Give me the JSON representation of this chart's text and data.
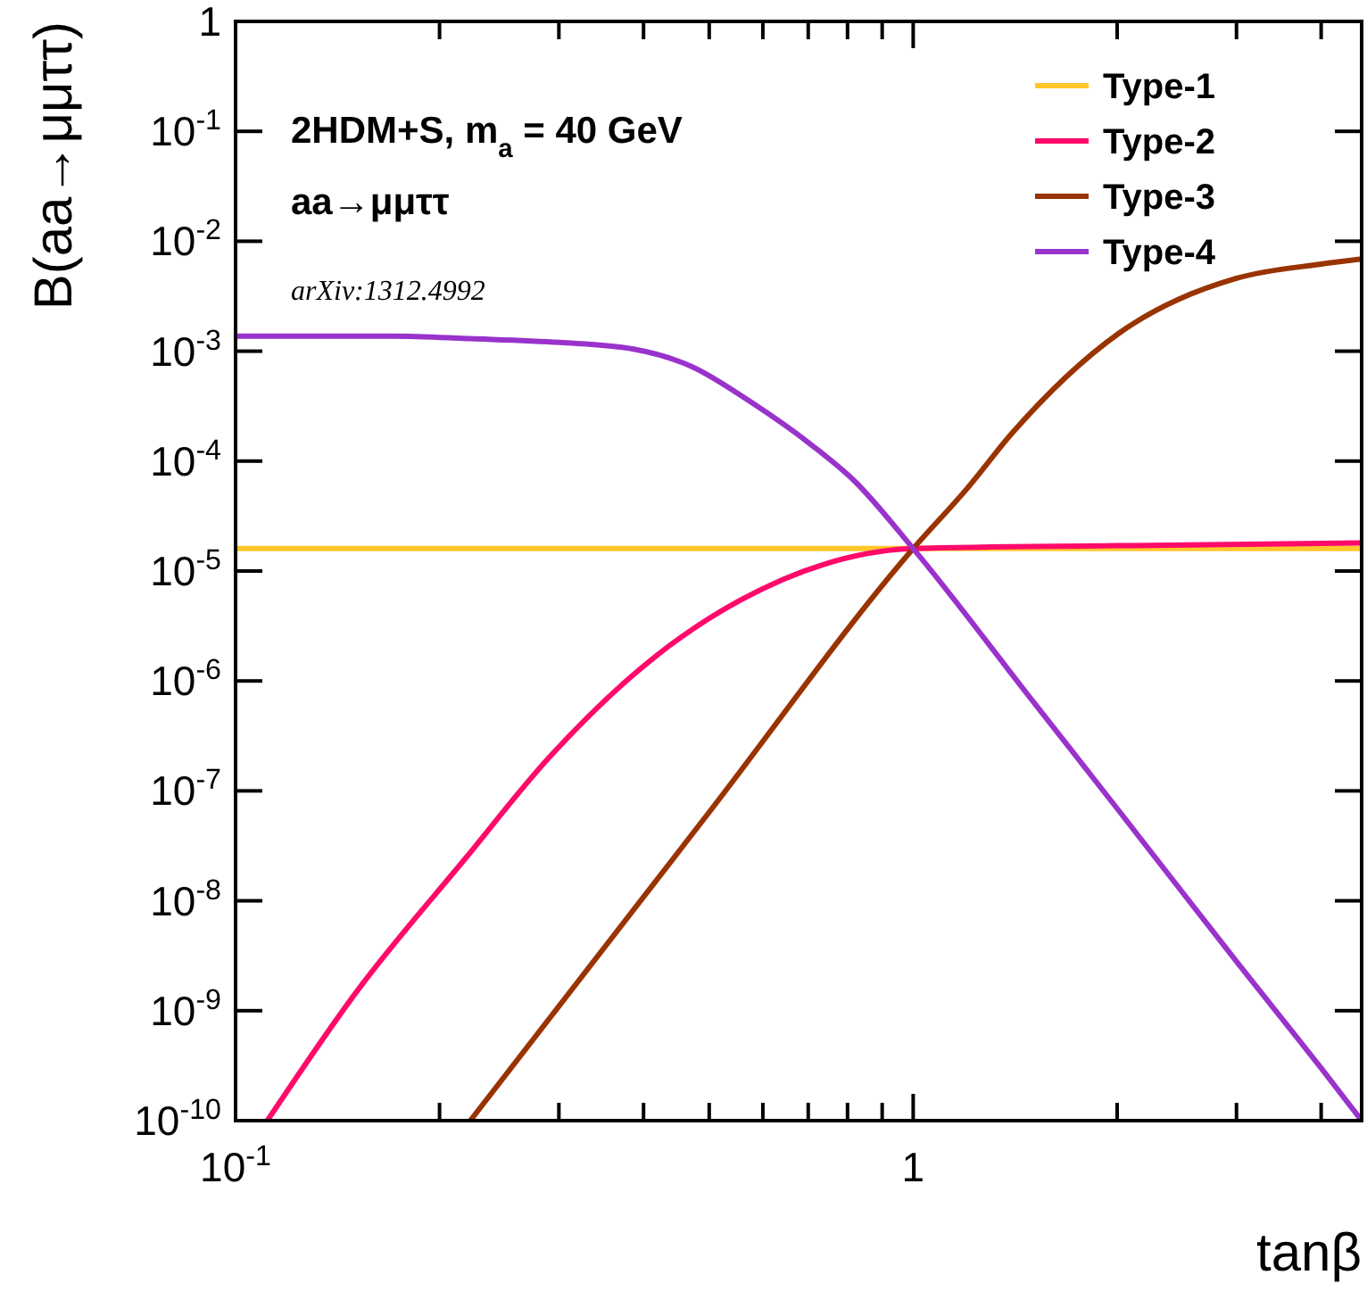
{
  "chart_data": {
    "type": "line",
    "xlabel": "tanβ",
    "ylabel": "B(aa→μμττ)",
    "log": "xy",
    "grid": false,
    "legend": "top right",
    "marker": "none",
    "line_style": "solid",
    "xlim": [
      0.1,
      4.59
    ],
    "ylim": [
      1e-10,
      1
    ],
    "xticks": [
      {
        "value": 0.1,
        "label": "10$^{-1}$"
      },
      {
        "value": 0.2,
        "label": null
      },
      {
        "value": 0.3,
        "label": null
      },
      {
        "value": 0.4,
        "label": null
      },
      {
        "value": 0.5,
        "label": null
      },
      {
        "value": 0.6,
        "label": null
      },
      {
        "value": 0.7,
        "label": null
      },
      {
        "value": 0.8,
        "label": null
      },
      {
        "value": 0.9,
        "label": null
      },
      1,
      {
        "value": 2,
        "label": null
      },
      {
        "value": 3,
        "label": null
      },
      {
        "value": 4,
        "label": null
      }
    ],
    "yticks": [
      {
        "value": 1e-10,
        "label": "10$^{-10}$"
      },
      {
        "value": 1e-09,
        "label": "10$^{-9}$"
      },
      {
        "value": 1e-08,
        "label": "10$^{-8}$"
      },
      {
        "value": 1e-07,
        "label": "10$^{-7}$"
      },
      {
        "value": 1e-06,
        "label": "10$^{-6}$"
      },
      {
        "value": 1e-05,
        "label": "10$^{-5}$"
      },
      {
        "value": 0.0001,
        "label": "10$^{-4}$"
      },
      {
        "value": 0.001,
        "label": "10$^{-3}$"
      },
      {
        "value": 0.01,
        "label": "10$^{-2}$"
      },
      {
        "value": 0.1,
        "label": "10$^{-1}$"
      },
      1
    ],
    "series": [
      {
        "name": "Type-1",
        "color": "#ffc72c",
        "x": [
          0.1,
          1,
          4.59
        ],
        "values": [
          1.6e-05,
          1.6e-05,
          1.6e-05
        ]
      },
      {
        "name": "Type-2",
        "color": "#ff0a6a",
        "x": [
          0.1114,
          0.151,
          0.218,
          0.29,
          0.418,
          0.555,
          0.738,
          1,
          2,
          4.59
        ],
        "values": [
          1e-10,
          1.5e-09,
          2.4e-08,
          2e-07,
          1.7e-06,
          5.4e-06,
          1.15e-05,
          1.6e-05,
          1.7e-05,
          1.8e-05
        ]
      },
      {
        "name": "Type-3",
        "color": "#993300",
        "x": [
          0.222,
          0.5,
          1,
          1.2,
          1.4,
          2.01,
          3,
          4,
          4.59
        ],
        "values": [
          1e-10,
          6.4e-08,
          1.6e-05,
          5.6e-05,
          0.00018,
          0.00145,
          0.0046,
          0.0062,
          0.0069
        ]
      },
      {
        "name": "Type-4",
        "color": "#9933cc",
        "x": [
          0.1,
          0.171,
          0.222,
          0.301,
          0.385,
          0.47,
          0.578,
          0.708,
          0.817,
          1,
          1.5,
          2,
          3,
          4,
          4.59
        ],
        "values": [
          0.00137,
          0.00137,
          0.0013,
          0.0012,
          0.00105,
          0.00073,
          0.00034,
          0.00014,
          6.7e-05,
          1.6e-05,
          6.6e-07,
          6.9e-08,
          2.8e-09,
          3e-10,
          1e-10
        ]
      }
    ],
    "annotations": [
      "2HDM+S, m$_{a}$ = 40 GeV",
      "aa→μμττ",
      "arXiv:1312.4992"
    ]
  }
}
